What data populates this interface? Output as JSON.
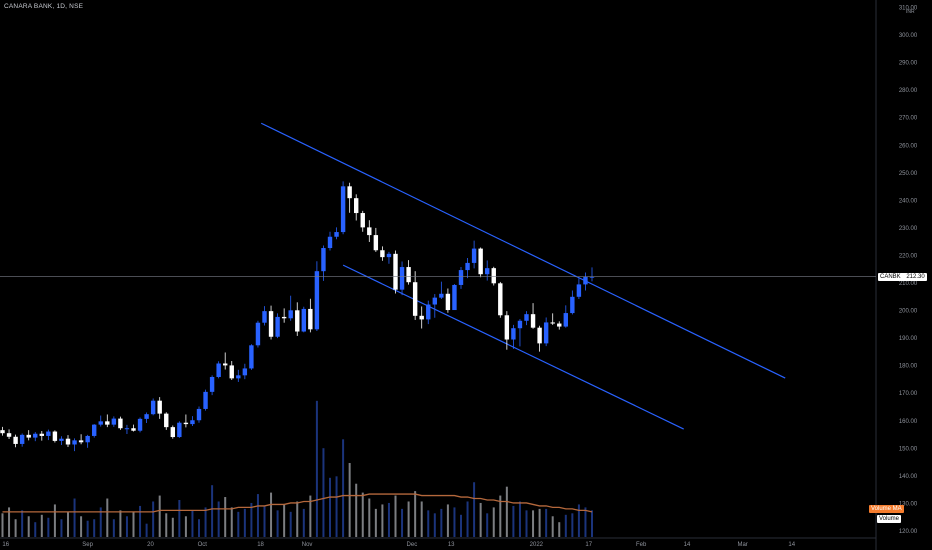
{
  "header": {
    "symbol": "CANARA BANK, 1D, NSE"
  },
  "currency": "INR",
  "price_tag": {
    "ticker": "CANBK",
    "value": "212.30"
  },
  "volume_ma_label": "Volume MA",
  "volume_label": "Volume",
  "colors": {
    "up": "#2962ff",
    "down": "#ffffff",
    "channel": "#2962ff",
    "ma": "#b5683c",
    "bg": "#000000"
  },
  "chart_data": {
    "type": "candlestick",
    "y_axis_ticks": [
      "310.00",
      "300.00",
      "290.00",
      "280.00",
      "270.00",
      "260.00",
      "250.00",
      "240.00",
      "230.00",
      "220.00",
      "210.00",
      "200.00",
      "190.00",
      "180.00",
      "170.00",
      "160.00",
      "150.00",
      "140.00",
      "130.00",
      "120.00"
    ],
    "ylim": [
      120,
      312
    ],
    "x_axis_ticks": [
      {
        "label": "16",
        "pos": 0.5
      },
      {
        "label": "Sep",
        "pos": 13
      },
      {
        "label": "20",
        "pos": 22.6
      },
      {
        "label": "Oct",
        "pos": 30.5
      },
      {
        "label": "18",
        "pos": 39.4
      },
      {
        "label": "Nov",
        "pos": 46.5
      },
      {
        "label": "Dec",
        "pos": 62.5
      },
      {
        "label": "13",
        "pos": 68.5
      },
      {
        "label": "2022",
        "pos": 81.5
      },
      {
        "label": "17",
        "pos": 89.5
      },
      {
        "label": "Feb",
        "pos": 97.5
      },
      {
        "label": "14",
        "pos": 104.5
      },
      {
        "label": "Mar",
        "pos": 113
      },
      {
        "label": "14",
        "pos": 120.5
      }
    ],
    "last_price": 212.3,
    "candles": [
      [
        156.6,
        157.8,
        154.6,
        155.5
      ],
      [
        155.5,
        156.9,
        153.4,
        154.2
      ],
      [
        154.2,
        155.0,
        150.4,
        151.6
      ],
      [
        151.6,
        155.4,
        150.6,
        154.9
      ],
      [
        154.9,
        156.6,
        152.9,
        153.9
      ],
      [
        153.9,
        155.9,
        152.6,
        155.3
      ],
      [
        155.3,
        156.3,
        152.8,
        154.5
      ],
      [
        154.5,
        156.8,
        153.0,
        156.1
      ],
      [
        156.1,
        156.5,
        152.1,
        152.7
      ],
      [
        152.7,
        154.4,
        151.2,
        153.5
      ],
      [
        153.5,
        154.8,
        150.5,
        151.4
      ],
      [
        151.4,
        153.6,
        149.0,
        152.9
      ],
      [
        152.9,
        155.1,
        151.5,
        152.2
      ],
      [
        152.2,
        154.9,
        150.2,
        154.5
      ],
      [
        154.5,
        158.8,
        153.9,
        158.6
      ],
      [
        158.6,
        161.9,
        157.9,
        159.8
      ],
      [
        159.8,
        162.3,
        157.7,
        158.6
      ],
      [
        158.6,
        161.6,
        157.8,
        160.8
      ],
      [
        160.8,
        161.5,
        156.7,
        157.3
      ],
      [
        157.3,
        158.5,
        155.2,
        157.3
      ],
      [
        157.3,
        158.6,
        156.1,
        156.4
      ],
      [
        156.4,
        161.2,
        155.8,
        160.7
      ],
      [
        160.7,
        163.0,
        159.2,
        162.4
      ],
      [
        162.4,
        168.1,
        162.0,
        167.3
      ],
      [
        167.3,
        168.6,
        160.7,
        162.6
      ],
      [
        162.6,
        163.1,
        156.7,
        157.7
      ],
      [
        157.7,
        158.3,
        153.5,
        154.1
      ],
      [
        154.1,
        159.8,
        153.8,
        159.3
      ],
      [
        159.3,
        162.3,
        157.6,
        158.8
      ],
      [
        158.8,
        161.7,
        158.1,
        160.2
      ],
      [
        160.2,
        165.2,
        159.3,
        164.3
      ],
      [
        164.3,
        171.3,
        163.7,
        170.5
      ],
      [
        170.5,
        176.5,
        169.3,
        175.9
      ],
      [
        175.9,
        181.6,
        175.4,
        180.8
      ],
      [
        180.8,
        184.8,
        178.6,
        180.1
      ],
      [
        180.1,
        181.7,
        174.8,
        175.4
      ],
      [
        175.4,
        178.5,
        174.1,
        176.5
      ],
      [
        176.5,
        180.7,
        175.1,
        179.0
      ],
      [
        179.0,
        187.8,
        178.5,
        187.4
      ],
      [
        187.4,
        196.3,
        186.6,
        195.6
      ],
      [
        195.6,
        201.6,
        194.6,
        199.8
      ],
      [
        199.8,
        201.8,
        189.5,
        190.5
      ],
      [
        190.5,
        199.0,
        190.0,
        197.7
      ],
      [
        197.7,
        200.8,
        195.6,
        197.2
      ],
      [
        197.2,
        205.4,
        196.3,
        200.1
      ],
      [
        200.1,
        203.0,
        190.8,
        192.4
      ],
      [
        192.4,
        201.4,
        192.1,
        200.6
      ],
      [
        200.6,
        204.3,
        192.1,
        193.2
      ],
      [
        193.2,
        217.9,
        192.6,
        214.3
      ],
      [
        214.3,
        223.6,
        210.8,
        222.7
      ],
      [
        222.7,
        228.6,
        221.8,
        226.8
      ],
      [
        226.8,
        230.2,
        225.9,
        228.5
      ],
      [
        228.5,
        246.9,
        227.7,
        245.1
      ],
      [
        245.1,
        246.4,
        235.5,
        240.8
      ],
      [
        240.8,
        242.2,
        232.7,
        235.4
      ],
      [
        235.4,
        236.2,
        228.6,
        230.2
      ],
      [
        230.2,
        232.8,
        224.9,
        227.4
      ],
      [
        227.4,
        230.0,
        221.3,
        221.9
      ],
      [
        221.9,
        223.3,
        218.1,
        219.4
      ],
      [
        219.4,
        221.3,
        217.0,
        220.6
      ],
      [
        220.6,
        221.8,
        206.2,
        207.6
      ],
      [
        207.6,
        217.8,
        205.6,
        215.8
      ],
      [
        215.8,
        218.3,
        209.4,
        210.3
      ],
      [
        210.3,
        214.3,
        196.6,
        198.1
      ],
      [
        198.1,
        201.5,
        193.5,
        196.8
      ],
      [
        196.8,
        203.6,
        195.1,
        202.2
      ],
      [
        202.2,
        206.0,
        197.4,
        204.7
      ],
      [
        204.7,
        210.5,
        204.2,
        206.1
      ],
      [
        206.1,
        208.0,
        199.2,
        200.2
      ],
      [
        200.2,
        209.6,
        200.2,
        209.3
      ],
      [
        209.3,
        215.8,
        207.9,
        214.7
      ],
      [
        214.7,
        219.1,
        211.8,
        217.3
      ],
      [
        217.3,
        225.4,
        215.3,
        222.5
      ],
      [
        222.5,
        222.9,
        212.1,
        213.2
      ],
      [
        213.2,
        218.2,
        210.9,
        215.4
      ],
      [
        215.4,
        215.9,
        209.1,
        209.9
      ],
      [
        209.9,
        210.4,
        197.4,
        198.3
      ],
      [
        198.3,
        199.8,
        185.8,
        189.5
      ],
      [
        189.5,
        194.8,
        186.1,
        193.6
      ],
      [
        193.6,
        196.9,
        187.0,
        196.3
      ],
      [
        196.3,
        199.8,
        194.7,
        198.7
      ],
      [
        198.7,
        202.7,
        193.4,
        193.8
      ],
      [
        193.8,
        194.5,
        185.1,
        188.1
      ],
      [
        188.1,
        197.5,
        187.1,
        195.7
      ],
      [
        195.7,
        199.0,
        194.8,
        195.3
      ],
      [
        195.3,
        196.1,
        193.1,
        194.2
      ],
      [
        194.2,
        201.9,
        193.8,
        199.1
      ],
      [
        199.1,
        207.3,
        198.6,
        205.0
      ],
      [
        205.0,
        211.8,
        204.2,
        209.5
      ],
      [
        209.5,
        213.8,
        207.3,
        212.2
      ],
      [
        212.2,
        215.7,
        210.6,
        212.3
      ]
    ],
    "volume": [
      0.16,
      0.2,
      0.12,
      0.18,
      0.14,
      0.1,
      0.15,
      0.13,
      0.22,
      0.12,
      0.17,
      0.26,
      0.14,
      0.11,
      0.12,
      0.2,
      0.26,
      0.12,
      0.18,
      0.14,
      0.17,
      0.21,
      0.09,
      0.24,
      0.28,
      0.16,
      0.13,
      0.25,
      0.14,
      0.18,
      0.12,
      0.2,
      0.35,
      0.24,
      0.27,
      0.2,
      0.17,
      0.19,
      0.23,
      0.29,
      0.21,
      0.3,
      0.18,
      0.22,
      0.17,
      0.24,
      0.19,
      0.28,
      0.92,
      0.6,
      0.4,
      0.41,
      0.66,
      0.5,
      0.36,
      0.3,
      0.26,
      0.19,
      0.22,
      0.23,
      0.28,
      0.19,
      0.24,
      0.31,
      0.24,
      0.18,
      0.16,
      0.19,
      0.22,
      0.2,
      0.15,
      0.24,
      0.37,
      0.23,
      0.16,
      0.2,
      0.28,
      0.34,
      0.21,
      0.24,
      0.18,
      0.18,
      0.19,
      0.19,
      0.14,
      0.1,
      0.15,
      0.16,
      0.22,
      0.2,
      0.18
    ],
    "volume_ma": [
      0.17,
      0.17,
      0.17,
      0.17,
      0.17,
      0.17,
      0.17,
      0.17,
      0.17,
      0.17,
      0.17,
      0.17,
      0.17,
      0.17,
      0.17,
      0.17,
      0.17,
      0.17,
      0.17,
      0.17,
      0.17,
      0.17,
      0.17,
      0.17,
      0.18,
      0.18,
      0.18,
      0.18,
      0.18,
      0.18,
      0.18,
      0.18,
      0.19,
      0.19,
      0.19,
      0.19,
      0.2,
      0.2,
      0.2,
      0.21,
      0.21,
      0.22,
      0.22,
      0.22,
      0.23,
      0.23,
      0.24,
      0.24,
      0.25,
      0.26,
      0.27,
      0.27,
      0.28,
      0.28,
      0.28,
      0.28,
      0.29,
      0.29,
      0.29,
      0.29,
      0.29,
      0.29,
      0.29,
      0.29,
      0.28,
      0.28,
      0.28,
      0.28,
      0.28,
      0.28,
      0.27,
      0.27,
      0.26,
      0.26,
      0.25,
      0.25,
      0.24,
      0.24,
      0.23,
      0.23,
      0.23,
      0.22,
      0.21,
      0.21,
      0.2,
      0.2,
      0.19,
      0.19,
      0.18,
      0.18,
      0.17
    ],
    "channel_lines": [
      {
        "from": [
          39.5,
          268.0
        ],
        "to": [
          119.5,
          175.5
        ]
      },
      {
        "from": [
          52,
          216.5
        ],
        "to": [
          104,
          157.0
        ]
      }
    ]
  }
}
